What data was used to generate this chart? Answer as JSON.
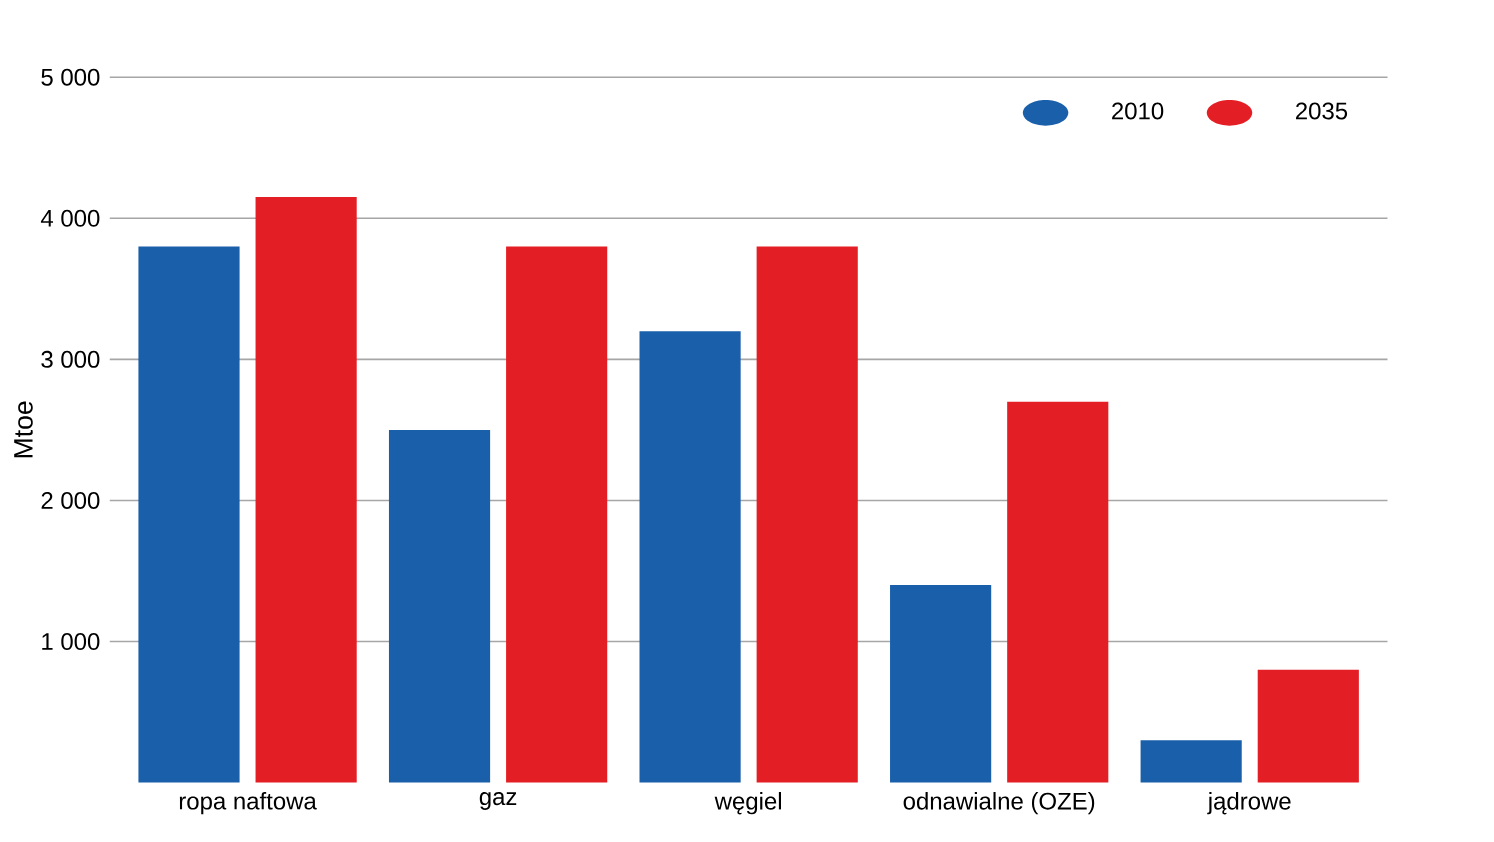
{
  "chart_data": {
    "type": "bar",
    "ylabel": "Mtoe",
    "categories": [
      "ropa naftowa",
      "gaz",
      "węgiel",
      "odnawialne (OZE)",
      "jądrowe"
    ],
    "series": [
      {
        "name": "2010",
        "color": "#1a5faa",
        "values": [
          3800,
          2500,
          3200,
          1400,
          300
        ]
      },
      {
        "name": "2035",
        "color": "#e31e24",
        "values": [
          4150,
          3800,
          3800,
          2700,
          800
        ]
      }
    ],
    "ylim": [
      0,
      5000
    ],
    "yticks": [
      {
        "value": 1000,
        "label": "1 000"
      },
      {
        "value": 2000,
        "label": "2 000"
      },
      {
        "value": 3000,
        "label": "3 000"
      },
      {
        "value": 4000,
        "label": "4 000"
      },
      {
        "value": 5000,
        "label": "5 000"
      }
    ],
    "grid": "y",
    "legend": "top right"
  }
}
